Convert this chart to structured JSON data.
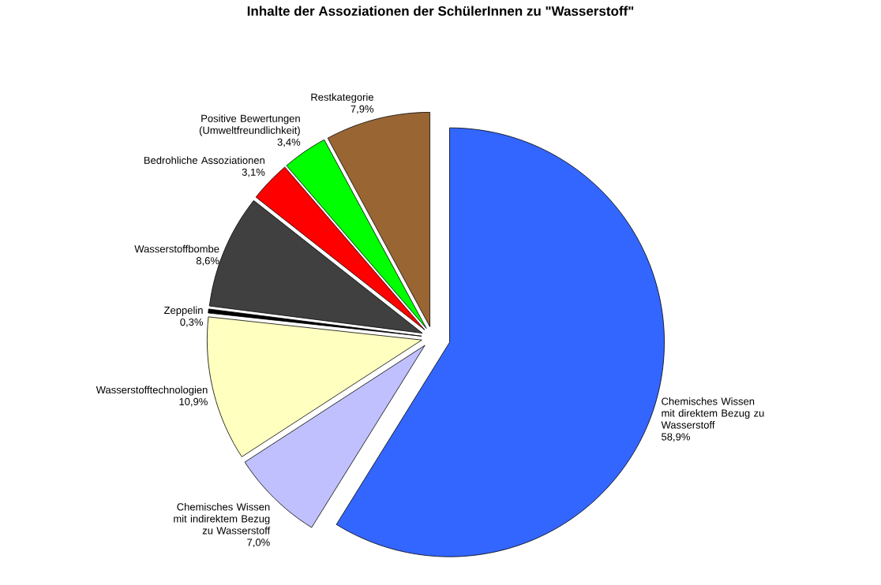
{
  "chart_data": {
    "type": "pie",
    "title": "Inhalte der Assoziationen der SchülerInnen zu \"Wasserstoff\"",
    "categories": [
      "Chemisches Wissen mit direktem Bezug zu Wasserstoff",
      "Chemisches Wissen mit indirektem Bezug zu Wasserstoff",
      "Wasserstofftechnologien",
      "Zeppelin",
      "Wasserstoffbombe",
      "Bedrohliche Assoziationen",
      "Positive Bewertungen (Umweltfreundlichkeit)",
      "Restkategorie"
    ],
    "values": [
      58.9,
      7.0,
      10.9,
      0.3,
      8.6,
      3.1,
      3.4,
      7.9
    ],
    "colors": [
      "#3366ff",
      "#c0c0ff",
      "#ffffc0",
      "#000000",
      "#404040",
      "#ff0000",
      "#00ff00",
      "#996633"
    ],
    "value_labels": [
      "58,9%",
      "7,0%",
      "10,9%",
      "0,3%",
      "8,6%",
      "3,1%",
      "3,4%",
      "7,9%"
    ]
  }
}
